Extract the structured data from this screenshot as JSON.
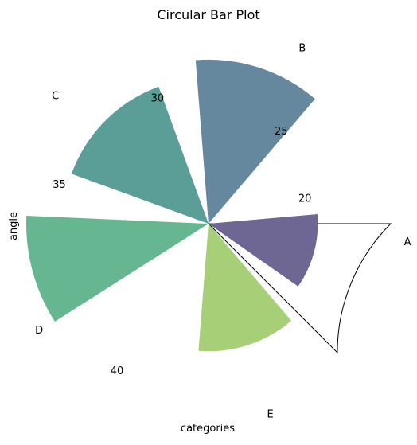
{
  "chart_data": {
    "type": "bar",
    "subtype": "polar",
    "title": "Circular Bar Plot",
    "xlabel": "categories",
    "ylabel": "angle",
    "categories": [
      "A",
      "B",
      "C",
      "D",
      "E"
    ],
    "values": [
      20,
      35,
      30,
      40,
      25
    ],
    "bar_colors": [
      "#6e6793",
      "#65889f",
      "#5a9e97",
      "#66b791",
      "#a6cf77"
    ],
    "radial_range": [
      0,
      40
    ],
    "radial_ticks": [
      20,
      25,
      30,
      35,
      40
    ],
    "radial_tick_labels": [
      "20",
      "25",
      "30",
      "35",
      "40"
    ],
    "radial_inner_offset": 10,
    "bar_angles_deg": [
      345,
      72,
      135,
      195,
      288
    ],
    "bar_widths_deg": [
      40,
      45,
      50,
      35,
      45
    ],
    "wedge_angles_deg": [
      315,
      0
    ],
    "radial_label_angles_deg": [
      15,
      52,
      112,
      165,
      238
    ],
    "tick_label_angles_deg": [
      355,
      62,
      140,
      212,
      288
    ],
    "grid": false,
    "legend": false
  }
}
